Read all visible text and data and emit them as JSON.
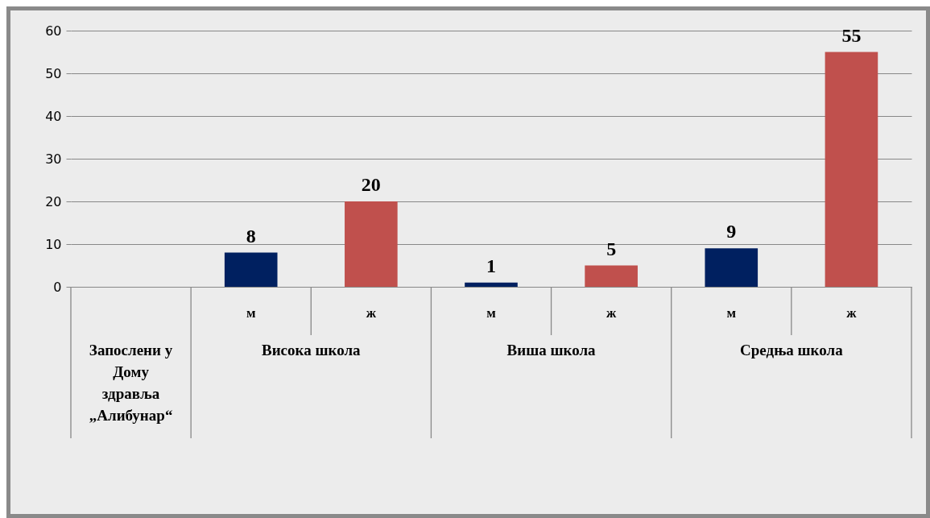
{
  "chart_data": {
    "type": "bar",
    "categories": [
      null,
      "м",
      "ж",
      "м",
      "ж",
      "м",
      "ж"
    ],
    "values": [
      null,
      8,
      20,
      1,
      5,
      9,
      55
    ],
    "colors": [
      "#002060",
      "#002060",
      "#c0504d",
      "#002060",
      "#c0504d",
      "#002060",
      "#c0504d"
    ],
    "annotations": [
      "Запослени у Дому здравља „Алибунар“",
      "Висока школа",
      "Виша школа",
      "Средња школа"
    ],
    "ylim": [
      0,
      60
    ],
    "yticks": [
      0,
      10,
      20,
      30,
      40,
      50,
      60
    ],
    "grid": "y",
    "data_labels": true
  }
}
